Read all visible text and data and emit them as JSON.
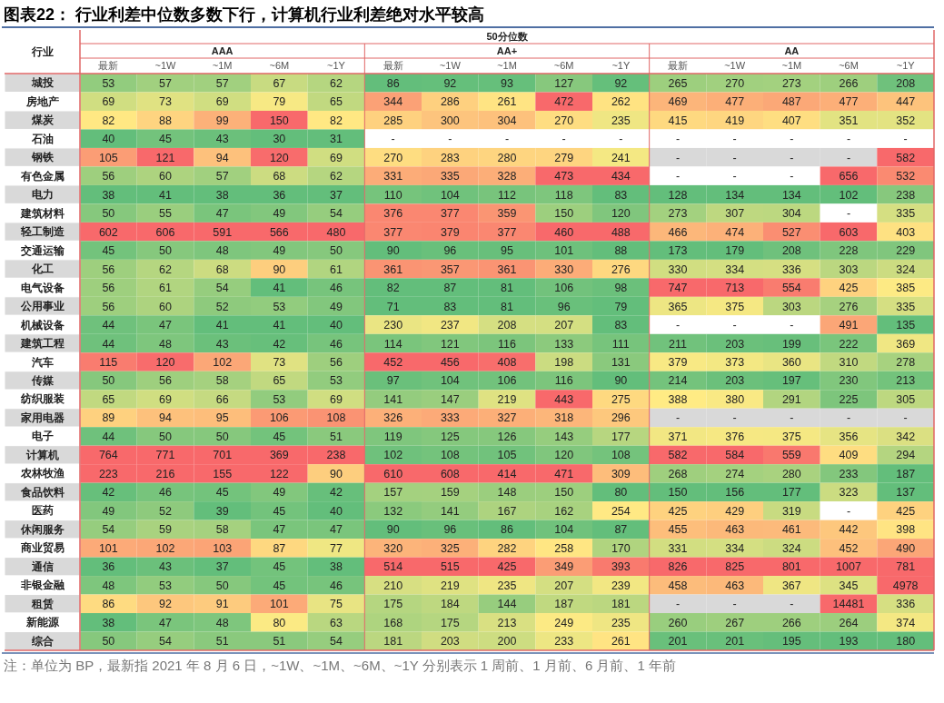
{
  "chart_data": {
    "type": "heatmap",
    "data_labels": true,
    "title": "图表22：  行业利差中位数多数下行，计算机行业利差绝对水平较高",
    "annotations": [
      "行业",
      "50分位数",
      "AAA",
      "AA+",
      "AA",
      "注：单位为 BP，最新指 2021 年 8 月 6 日，~1W、~1M、~6M、~1Y 分别表示 1 周前、1 月前、6 月前、1 年前"
    ],
    "categories": [
      "最新",
      "~1W",
      "~1M",
      "~6M",
      "~1Y",
      "最新",
      "~1W",
      "~1M",
      "~6M",
      "~1Y",
      "最新",
      "~1W",
      "~1M",
      "~6M",
      "~1Y"
    ],
    "y_categories": [
      "城投",
      "房地产",
      "煤炭",
      "石油",
      "钢铁",
      "有色金属",
      "电力",
      "建筑材料",
      "轻工制造",
      "交通运输",
      "化工",
      "电气设备",
      "公用事业",
      "机械设备",
      "建筑工程",
      "汽车",
      "传媒",
      "纺织服装",
      "家用电器",
      "电子",
      "计算机",
      "农林牧渔",
      "食品饮料",
      "医药",
      "休闲服务",
      "商业贸易",
      "通信",
      "非银金融",
      "租赁",
      "新能源",
      "综合"
    ],
    "cells": [
      [
        53,
        57,
        57,
        67,
        62,
        86,
        92,
        93,
        127,
        92,
        265,
        270,
        273,
        266,
        208
      ],
      [
        69,
        73,
        69,
        79,
        65,
        344,
        286,
        261,
        472,
        262,
        469,
        477,
        487,
        477,
        447
      ],
      [
        82,
        88,
        99,
        150,
        82,
        285,
        300,
        304,
        270,
        235,
        415,
        419,
        407,
        351,
        352
      ],
      [
        40,
        45,
        43,
        30,
        31,
        null,
        null,
        null,
        null,
        null,
        null,
        null,
        null,
        null,
        null
      ],
      [
        105,
        121,
        94,
        120,
        69,
        270,
        283,
        280,
        279,
        241,
        null,
        null,
        null,
        null,
        582
      ],
      [
        56,
        60,
        57,
        68,
        62,
        331,
        335,
        328,
        473,
        434,
        null,
        null,
        null,
        656,
        532
      ],
      [
        38,
        41,
        38,
        36,
        37,
        110,
        104,
        112,
        118,
        83,
        128,
        134,
        134,
        102,
        238
      ],
      [
        50,
        55,
        47,
        49,
        54,
        376,
        377,
        359,
        150,
        120,
        273,
        307,
        304,
        null,
        335
      ],
      [
        602,
        606,
        591,
        566,
        480,
        377,
        379,
        377,
        460,
        488,
        466,
        474,
        527,
        603,
        403
      ],
      [
        45,
        50,
        48,
        49,
        50,
        90,
        96,
        95,
        101,
        88,
        173,
        179,
        208,
        228,
        229
      ],
      [
        56,
        62,
        68,
        90,
        61,
        361,
        357,
        361,
        330,
        276,
        330,
        334,
        336,
        303,
        324
      ],
      [
        56,
        61,
        54,
        41,
        46,
        82,
        87,
        81,
        106,
        98,
        747,
        713,
        554,
        425,
        385
      ],
      [
        56,
        60,
        52,
        53,
        49,
        71,
        83,
        81,
        96,
        79,
        365,
        375,
        303,
        276,
        335
      ],
      [
        44,
        47,
        41,
        41,
        40,
        230,
        237,
        208,
        207,
        83,
        null,
        null,
        null,
        491,
        135
      ],
      [
        44,
        48,
        43,
        42,
        46,
        114,
        121,
        116,
        133,
        111,
        211,
        203,
        199,
        222,
        369
      ],
      [
        115,
        120,
        102,
        73,
        56,
        452,
        456,
        408,
        198,
        131,
        379,
        373,
        360,
        310,
        278
      ],
      [
        50,
        56,
        58,
        65,
        53,
        97,
        104,
        106,
        116,
        90,
        214,
        203,
        197,
        230,
        213
      ],
      [
        65,
        69,
        66,
        53,
        69,
        141,
        147,
        219,
        443,
        275,
        388,
        380,
        291,
        225,
        305
      ],
      [
        89,
        94,
        95,
        106,
        108,
        326,
        333,
        327,
        318,
        296,
        null,
        null,
        null,
        null,
        null
      ],
      [
        44,
        50,
        50,
        45,
        51,
        119,
        125,
        126,
        143,
        177,
        371,
        376,
        375,
        356,
        342
      ],
      [
        764,
        771,
        701,
        369,
        238,
        102,
        108,
        105,
        120,
        108,
        582,
        584,
        559,
        409,
        294
      ],
      [
        223,
        216,
        155,
        122,
        90,
        610,
        608,
        414,
        471,
        309,
        268,
        274,
        280,
        233,
        187
      ],
      [
        42,
        46,
        45,
        49,
        42,
        157,
        159,
        148,
        150,
        80,
        150,
        156,
        177,
        323,
        137
      ],
      [
        49,
        52,
        39,
        45,
        40,
        132,
        141,
        167,
        162,
        254,
        425,
        429,
        319,
        null,
        425
      ],
      [
        54,
        59,
        58,
        47,
        47,
        90,
        96,
        86,
        104,
        87,
        455,
        463,
        461,
        442,
        398
      ],
      [
        101,
        102,
        103,
        87,
        77,
        320,
        325,
        282,
        258,
        170,
        331,
        334,
        324,
        452,
        490
      ],
      [
        36,
        43,
        37,
        45,
        38,
        514,
        515,
        425,
        349,
        393,
        826,
        825,
        801,
        1007,
        781
      ],
      [
        48,
        53,
        50,
        45,
        46,
        210,
        219,
        235,
        207,
        239,
        458,
        463,
        367,
        345,
        4978
      ],
      [
        86,
        92,
        91,
        101,
        75,
        175,
        184,
        144,
        187,
        181,
        null,
        null,
        null,
        14481,
        336
      ],
      [
        38,
        47,
        48,
        80,
        63,
        168,
        175,
        213,
        249,
        235,
        260,
        267,
        266,
        264,
        374
      ],
      [
        50,
        54,
        51,
        51,
        54,
        181,
        203,
        200,
        233,
        261,
        201,
        201,
        195,
        193,
        180
      ]
    ],
    "cell_labels": [
      [
        "53",
        "57",
        "57",
        "67",
        "62",
        "86",
        "92",
        "93",
        "127",
        "92",
        "265",
        "270",
        "273",
        "266",
        "208"
      ],
      [
        "69",
        "73",
        "69",
        "79",
        "65",
        "344",
        "286",
        "261",
        "472",
        "262",
        "469",
        "477",
        "487",
        "477",
        "447"
      ],
      [
        "82",
        "88",
        "99",
        "150",
        "82",
        "285",
        "300",
        "304",
        "270",
        "235",
        "415",
        "419",
        "407",
        "351",
        "352"
      ],
      [
        "40",
        "45",
        "43",
        "30",
        "31",
        "-",
        "-",
        "-",
        "-",
        "-",
        "-",
        "-",
        "-",
        "-",
        "-"
      ],
      [
        "105",
        "121",
        "94",
        "120",
        "69",
        "270",
        "283",
        "280",
        "279",
        "241",
        "-",
        "-",
        "-",
        "-",
        "582"
      ],
      [
        "56",
        "60",
        "57",
        "68",
        "62",
        "331",
        "335",
        "328",
        "473",
        "434",
        "-",
        "-",
        "-",
        "656",
        "532"
      ],
      [
        "38",
        "41",
        "38",
        "36",
        "37",
        "110",
        "104",
        "112",
        "118",
        "83",
        "128",
        "134",
        "134",
        "102",
        "238"
      ],
      [
        "50",
        "55",
        "47",
        "49",
        "54",
        "376",
        "377",
        "359",
        "150",
        "120",
        "273",
        "307",
        "304",
        "-",
        "335"
      ],
      [
        "602",
        "606",
        "591",
        "566",
        "480",
        "377",
        "379",
        "377",
        "460",
        "488",
        "466",
        "474",
        "527",
        "603",
        "403"
      ],
      [
        "45",
        "50",
        "48",
        "49",
        "50",
        "90",
        "96",
        "95",
        "101",
        "88",
        "173",
        "179",
        "208",
        "228",
        "229"
      ],
      [
        "56",
        "62",
        "68",
        "90",
        "61",
        "361",
        "357",
        "361",
        "330",
        "276",
        "330",
        "334",
        "336",
        "303",
        "324"
      ],
      [
        "56",
        "61",
        "54",
        "41",
        "46",
        "82",
        "87",
        "81",
        "106",
        "98",
        "747",
        "713",
        "554",
        "425",
        "385"
      ],
      [
        "56",
        "60",
        "52",
        "53",
        "49",
        "71",
        "83",
        "81",
        "96",
        "79",
        "365",
        "375",
        "303",
        "276",
        "335"
      ],
      [
        "44",
        "47",
        "41",
        "41",
        "40",
        "230",
        "237",
        "208",
        "207",
        "83",
        "-",
        "-",
        "-",
        "491",
        "135"
      ],
      [
        "44",
        "48",
        "43",
        "42",
        "46",
        "114",
        "121",
        "116",
        "133",
        "111",
        "211",
        "203",
        "199",
        "222",
        "369"
      ],
      [
        "115",
        "120",
        "102",
        "73",
        "56",
        "452",
        "456",
        "408",
        "198",
        "131",
        "379",
        "373",
        "360",
        "310",
        "278"
      ],
      [
        "50",
        "56",
        "58",
        "65",
        "53",
        "97",
        "104",
        "106",
        "116",
        "90",
        "214",
        "203",
        "197",
        "230",
        "213"
      ],
      [
        "65",
        "69",
        "66",
        "53",
        "69",
        "141",
        "147",
        "219",
        "443",
        "275",
        "388",
        "380",
        "291",
        "225",
        "305"
      ],
      [
        "89",
        "94",
        "95",
        "106",
        "108",
        "326",
        "333",
        "327",
        "318",
        "296",
        "-",
        "-",
        "-",
        "-",
        "-"
      ],
      [
        "44",
        "50",
        "50",
        "45",
        "51",
        "119",
        "125",
        "126",
        "143",
        "177",
        "371",
        "376",
        "375",
        "356",
        "342"
      ],
      [
        "764",
        "771",
        "701",
        "369",
        "238",
        "102",
        "108",
        "105",
        "120",
        "108",
        "582",
        "584",
        "559",
        "409",
        "294"
      ],
      [
        "223",
        "216",
        "155",
        "122",
        "90",
        "610",
        "608",
        "414",
        "471",
        "309",
        "268",
        "274",
        "280",
        "233",
        "187"
      ],
      [
        "42",
        "46",
        "45",
        "49",
        "42",
        "157",
        "159",
        "148",
        "150",
        "80",
        "150",
        "156",
        "177",
        "323",
        "137"
      ],
      [
        "49",
        "52",
        "39",
        "45",
        "40",
        "132",
        "141",
        "167",
        "162",
        "254",
        "425",
        "429",
        "319",
        "-",
        "425"
      ],
      [
        "54",
        "59",
        "58",
        "47",
        "47",
        "90",
        "96",
        "86",
        "104",
        "87",
        "455",
        "463",
        "461",
        "442",
        "398"
      ],
      [
        "101",
        "102",
        "103",
        "87",
        "77",
        "320",
        "325",
        "282",
        "258",
        "170",
        "331",
        "334",
        "324",
        "452",
        "490"
      ],
      [
        "36",
        "43",
        "37",
        "45",
        "38",
        "514",
        "515",
        "425",
        "349",
        "393",
        "826",
        "825",
        "801",
        "1007",
        "781"
      ],
      [
        "48",
        "53",
        "50",
        "45",
        "46",
        "210",
        "219",
        "235",
        "207",
        "239",
        "458",
        "463",
        "367",
        "345",
        "4978"
      ],
      [
        "86",
        "92",
        "91",
        "101",
        "75",
        "175",
        "184",
        "144",
        "187",
        "181",
        "-",
        "-",
        "-",
        "14481",
        "336"
      ],
      [
        "38",
        "47",
        "48",
        "80",
        "63",
        "168",
        "175",
        "213",
        "249",
        "235",
        "260",
        "267",
        "266",
        "264",
        "374"
      ],
      [
        "50",
        "54",
        "51",
        "51",
        "54",
        "181",
        "203",
        "200",
        "233",
        "261",
        "201",
        "201",
        "195",
        "193",
        "180"
      ]
    ]
  }
}
